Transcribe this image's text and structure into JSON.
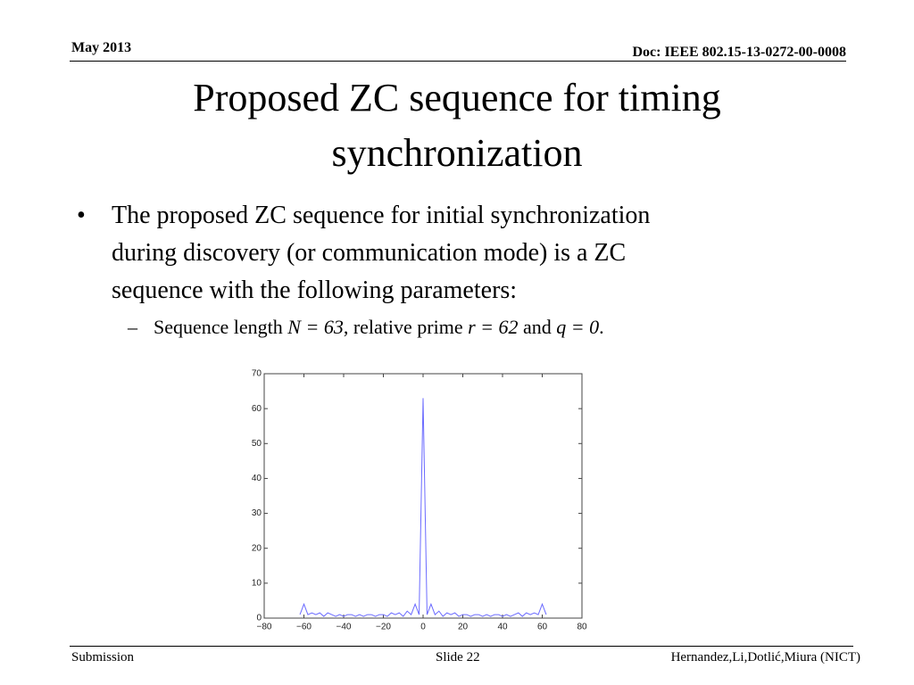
{
  "header": {
    "date": "May 2013",
    "doc": "Doc: IEEE 802.15-13-0272-00-0008"
  },
  "title": [
    "Proposed ZC sequence for timing",
    "synchronization"
  ],
  "bullet": {
    "symbol": "•",
    "lines": [
      "The proposed ZC sequence for initial synchronization",
      "during discovery (or communication mode) is a ZC",
      "sequence with the following parameters:"
    ]
  },
  "sub_bullet": {
    "symbol": "–",
    "runs": [
      {
        "text": "Sequence length "
      },
      {
        "text": "N = 63",
        "italic": true
      },
      {
        "text": ", relative prime "
      },
      {
        "text": "r = 62",
        "italic": true
      },
      {
        "text": " and "
      },
      {
        "text": "q = 0",
        "italic": true
      },
      {
        "text": "."
      }
    ]
  },
  "chart_data": {
    "type": "line",
    "color": "#6b6bff",
    "x": [
      -62,
      -60,
      -58,
      -56,
      -54,
      -52,
      -50,
      -48,
      -46,
      -44,
      -42,
      -40,
      -38,
      -36,
      -34,
      -32,
      -30,
      -28,
      -26,
      -24,
      -22,
      -20,
      -18,
      -16,
      -14,
      -12,
      -10,
      -8,
      -6,
      -4,
      -2,
      0,
      2,
      4,
      6,
      8,
      10,
      12,
      14,
      16,
      18,
      20,
      22,
      24,
      26,
      28,
      30,
      32,
      34,
      36,
      38,
      40,
      42,
      44,
      46,
      48,
      50,
      52,
      54,
      56,
      58,
      60,
      62
    ],
    "values": [
      1,
      4,
      1,
      1.5,
      1,
      1.5,
      0.5,
      1.5,
      1,
      0.5,
      1,
      0.5,
      1,
      1,
      0.5,
      1,
      0.5,
      1,
      1,
      0.5,
      1,
      1,
      0.5,
      1.5,
      1,
      1.5,
      0.5,
      2,
      1,
      4,
      1,
      63,
      1,
      4,
      1,
      2,
      0.5,
      1.5,
      1,
      1.5,
      0.5,
      1,
      1,
      0.5,
      1,
      1,
      0.5,
      1,
      0.5,
      1,
      1,
      0.5,
      1,
      0.5,
      1,
      1.5,
      0.5,
      1.5,
      1,
      1.5,
      1,
      4,
      1
    ],
    "xlim": [
      -80,
      80
    ],
    "ylim": [
      0,
      70
    ],
    "xticks": [
      {
        "value": -80,
        "label": "−80"
      },
      {
        "value": -60,
        "label": "−60"
      },
      {
        "value": -40,
        "label": "−40"
      },
      {
        "value": -20,
        "label": "−20"
      },
      0,
      20,
      40,
      60,
      80
    ],
    "yticks": [
      0,
      10,
      20,
      30,
      40,
      50,
      60,
      70
    ],
    "grid": false
  },
  "footer": {
    "left": "Submission",
    "center": "Slide 22",
    "right": "Hernandez,Li,Dotlić,Miura (NICT)"
  }
}
